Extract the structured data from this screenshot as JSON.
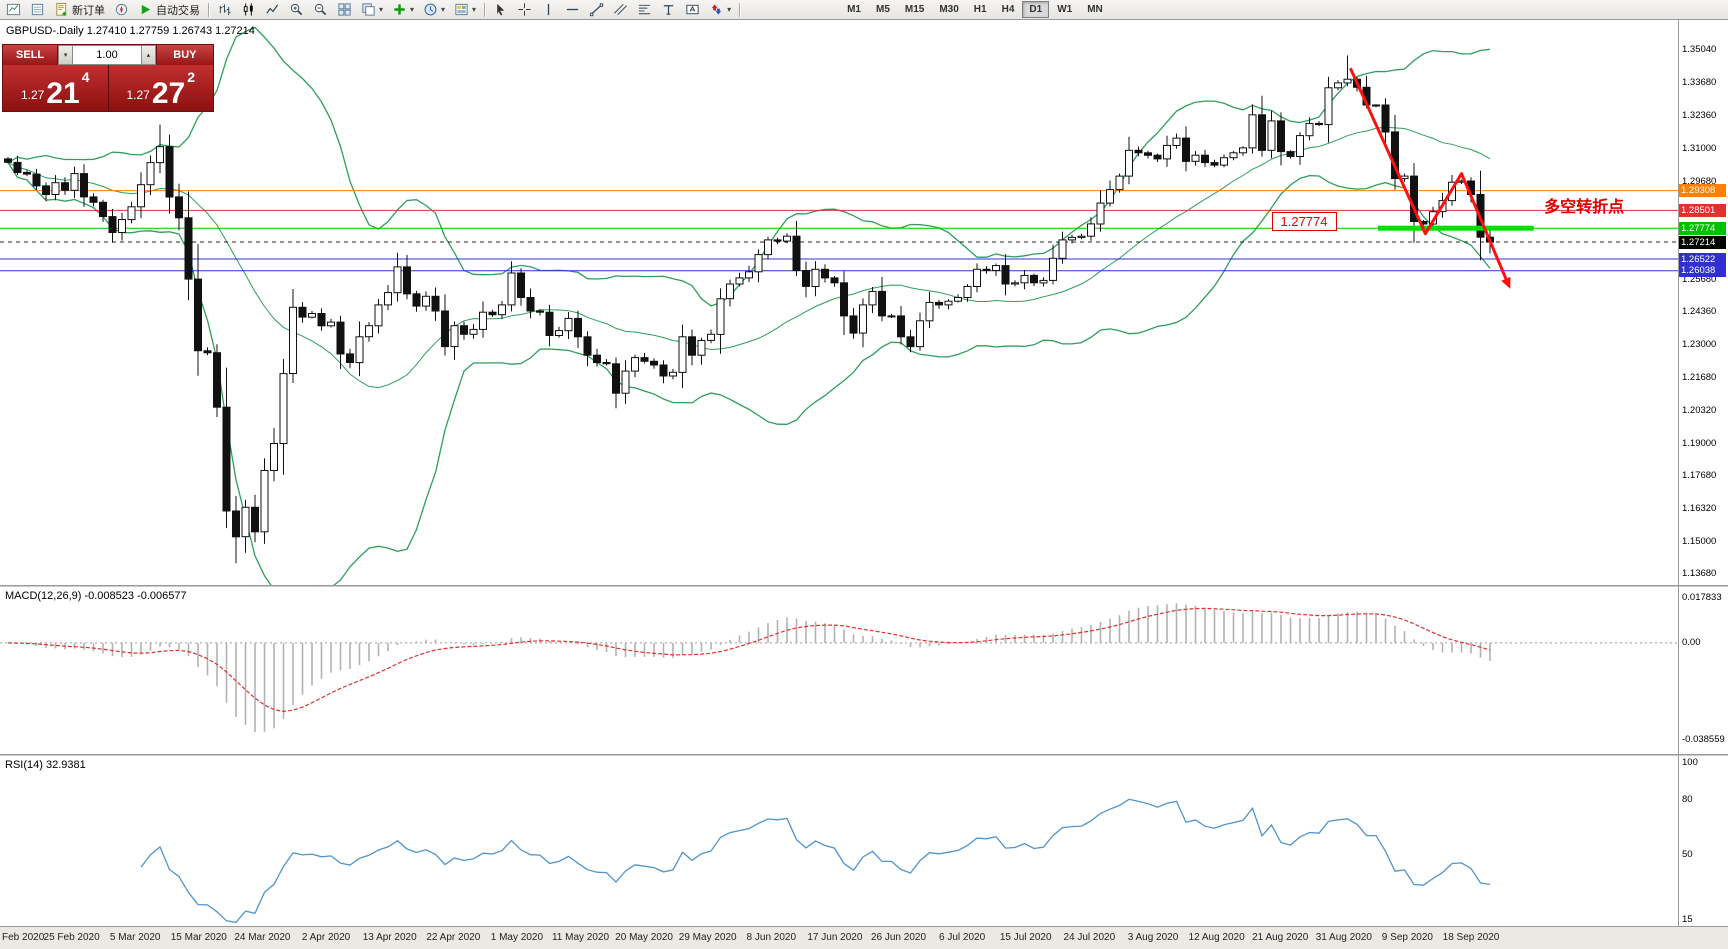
{
  "toolbar": {
    "new_order_label": "新订单",
    "auto_trading_label": "自动交易",
    "timeframes": [
      "M1",
      "M5",
      "M15",
      "M30",
      "H1",
      "H4",
      "D1",
      "W1",
      "MN"
    ],
    "active_timeframe": "D1"
  },
  "chart": {
    "symbol_period": "GBPUSD-.Daily",
    "ohlc_text": "1.27410 1.27759 1.26743 1.27214"
  },
  "trade": {
    "sell_label": "SELL",
    "buy_label": "BUY",
    "volume": "1.00",
    "sell": {
      "small": "1.27",
      "big": "21",
      "sup": "4"
    },
    "buy": {
      "small": "1.27",
      "big": "27",
      "sup": "2"
    }
  },
  "macd": {
    "label_text": "MACD(12,26,9) -0.008523 -0.006577",
    "axis_labels": [
      "0.017833",
      "0.00",
      "-0.038559"
    ]
  },
  "rsi": {
    "label_text": "RSI(14) 32.9381",
    "axis_labels": [
      "100",
      "80",
      "50",
      "15"
    ]
  },
  "annotations": {
    "turning_point_text": "多空转折点",
    "price_box_text": "1.27774"
  },
  "chart_data": {
    "type": "candlestick",
    "symbol": "GBPUSD-",
    "period": "Daily",
    "ohlc_display": {
      "open": 1.2741,
      "high": 1.27759,
      "low": 1.26743,
      "close": 1.27214
    },
    "price_axis_ticks": [
      "1.35040",
      "1.33680",
      "1.32360",
      "1.31000",
      "1.29680",
      "1.25680",
      "1.24360",
      "1.23000",
      "1.21680",
      "1.20320",
      "1.19000",
      "1.17680",
      "1.16320",
      "1.15000",
      "1.13680"
    ],
    "level_lines": [
      {
        "price": 1.29308,
        "label": "1.29308",
        "color": "#ff8000",
        "style": "solid"
      },
      {
        "price": 1.28501,
        "label": "1.28501",
        "color": "#e03030",
        "style": "solid"
      },
      {
        "price": 1.27774,
        "label": "1.27774",
        "color": "#00c000",
        "style": "solid"
      },
      {
        "price": 1.27214,
        "label": "1.27214",
        "color": "#000000",
        "style": "dashed"
      },
      {
        "price": 1.26522,
        "label": "1.26522",
        "color": "#3030d0",
        "style": "solid"
      },
      {
        "price": 1.26038,
        "label": "1.26038",
        "color": "#3030d0",
        "style": "solid"
      }
    ],
    "bollinger": {
      "period": 20,
      "deviation": 2,
      "color": "#2e9e5b"
    },
    "first_open": 1.306,
    "closes": [
      1.3046,
      1.3005,
      1.2998,
      1.295,
      1.2915,
      1.2963,
      1.2932,
      1.3,
      1.2905,
      1.2883,
      1.2825,
      1.276,
      1.2813,
      1.2865,
      1.2955,
      1.3045,
      1.311,
      1.2905,
      1.282,
      1.257,
      1.2278,
      1.227,
      1.2048,
      1.1625,
      1.152,
      1.164,
      1.154,
      1.179,
      1.19,
      1.2185,
      1.2455,
      1.2415,
      1.243,
      1.238,
      1.2395,
      1.2265,
      1.223,
      1.2335,
      1.238,
      1.2465,
      1.2515,
      1.262,
      1.251,
      1.246,
      1.25,
      1.244,
      1.2295,
      1.238,
      1.2345,
      1.2365,
      1.2435,
      1.2425,
      1.2465,
      1.2595,
      1.2495,
      1.244,
      1.2435,
      1.234,
      1.236,
      1.241,
      1.2335,
      1.226,
      1.223,
      1.2225,
      1.2105,
      1.2195,
      1.225,
      1.2235,
      1.222,
      1.2175,
      1.219,
      1.2335,
      1.226,
      1.232,
      1.2345,
      1.249,
      1.255,
      1.2575,
      1.26,
      1.267,
      1.273,
      1.2725,
      1.2745,
      1.2605,
      1.254,
      1.261,
      1.2575,
      1.2555,
      1.242,
      1.235,
      1.2465,
      1.252,
      1.242,
      1.242,
      1.2335,
      1.2295,
      1.24,
      1.2475,
      1.2465,
      1.248,
      1.2495,
      1.254,
      1.261,
      1.2605,
      1.2625,
      1.255,
      1.2555,
      1.2585,
      1.2555,
      1.2565,
      1.2655,
      1.273,
      1.274,
      1.2745,
      1.2795,
      1.288,
      1.2935,
      1.299,
      1.3095,
      1.3085,
      1.3075,
      1.306,
      1.3115,
      1.3145,
      1.305,
      1.3075,
      1.3045,
      1.3035,
      1.3065,
      1.3085,
      1.3105,
      1.324,
      1.3095,
      1.3215,
      1.309,
      1.307,
      1.3155,
      1.3205,
      1.32,
      1.335,
      1.337,
      1.3385,
      1.3352,
      1.328,
      1.328,
      1.317,
      1.298,
      1.299,
      1.2805,
      1.2795,
      1.2845,
      1.289,
      1.2965,
      1.297,
      1.2915,
      1.2741,
      1.2721
    ],
    "high_overrides": {
      "16": 1.32,
      "141": 1.3482,
      "156": 1.27759
    },
    "low_overrides": {
      "24": 1.1412,
      "156": 1.26743
    },
    "x_labels": [
      "Feb 2020",
      "25 Feb 2020",
      "5 Mar 2020",
      "15 Mar 2020",
      "24 Mar 2020",
      "2 Apr 2020",
      "13 Apr 2020",
      "22 Apr 2020",
      "1 May 2020",
      "11 May 2020",
      "20 May 2020",
      "29 May 2020",
      "8 Jun 2020",
      "17 Jun 2020",
      "26 Jun 2020",
      "6 Jul 2020",
      "15 Jul 2020",
      "24 Jul 2020",
      "3 Aug 2020",
      "12 Aug 2020",
      "21 Aug 2020",
      "31 Aug 2020",
      "9 Sep 2020",
      "18 Sep 2020"
    ],
    "macd": {
      "fast": 12,
      "slow": 26,
      "signal": 9,
      "value": -0.008523,
      "signal_value": -0.006577,
      "axis_max": 0.017833,
      "axis_min": -0.038559,
      "histogram_color": "#b2b2b2",
      "signal_color": "#e03030"
    },
    "rsi": {
      "period": 14,
      "value": 32.9381,
      "axis_max": 100,
      "axis_min": 15,
      "line_color": "#4f94cd"
    },
    "annotations": {
      "trend_line": {
        "color": "#ff1010",
        "points": [
          [
            141.3,
            1.343
          ],
          [
            149.2,
            1.2755
          ],
          [
            153.0,
            1.3
          ],
          [
            157.8,
            1.256
          ]
        ]
      },
      "highlight_bar": {
        "price": 1.27774,
        "from_candle": 144.2,
        "to_candle": 160.6,
        "color": "#00e000"
      },
      "price_box": {
        "text": "1.27774",
        "candle": 133,
        "price": 1.2805
      },
      "turning_text": {
        "text": "多空转折点",
        "candle": 161.7,
        "price": 1.2884
      }
    }
  }
}
